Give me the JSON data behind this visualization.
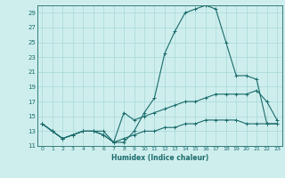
{
  "xlabel": "Humidex (Indice chaleur)",
  "xlim": [
    -0.5,
    23.5
  ],
  "ylim": [
    11,
    30
  ],
  "yticks": [
    11,
    13,
    15,
    17,
    19,
    21,
    23,
    25,
    27,
    29
  ],
  "xticks": [
    0,
    1,
    2,
    3,
    4,
    5,
    6,
    7,
    8,
    9,
    10,
    11,
    12,
    13,
    14,
    15,
    16,
    17,
    18,
    19,
    20,
    21,
    22,
    23
  ],
  "bg_color": "#ceeeed",
  "line_color": "#1a6b6b",
  "grid_color": "#a8d8d8",
  "lines": [
    {
      "x": [
        0,
        1,
        2,
        3,
        4,
        5,
        6,
        7,
        8,
        9,
        10,
        11,
        12,
        13,
        14,
        15,
        16,
        17,
        18,
        19,
        20,
        21,
        22,
        23
      ],
      "y": [
        14,
        13,
        12,
        12.5,
        13,
        13,
        13,
        11.5,
        11.5,
        13,
        15.5,
        17.5,
        23.5,
        26.5,
        29,
        29.5,
        30,
        29.5,
        25,
        20.5,
        20.5,
        20,
        14,
        14
      ]
    },
    {
      "x": [
        0,
        1,
        2,
        3,
        4,
        5,
        6,
        7,
        8,
        9,
        10,
        11,
        12,
        13,
        14,
        15,
        16,
        17,
        18,
        19,
        20,
        21,
        22,
        23
      ],
      "y": [
        14,
        13,
        12,
        12.5,
        13,
        13,
        12.5,
        11.5,
        15.5,
        14.5,
        15,
        15.5,
        16,
        16.5,
        17,
        17,
        17.5,
        18,
        18,
        18,
        18,
        18.5,
        17,
        14.5
      ]
    },
    {
      "x": [
        0,
        1,
        2,
        3,
        4,
        5,
        6,
        7,
        8,
        9,
        10,
        11,
        12,
        13,
        14,
        15,
        16,
        17,
        18,
        19,
        20,
        21,
        22,
        23
      ],
      "y": [
        14,
        13,
        12,
        12.5,
        13,
        13,
        12.5,
        11.5,
        12,
        12.5,
        13,
        13,
        13.5,
        13.5,
        14,
        14,
        14.5,
        14.5,
        14.5,
        14.5,
        14,
        14,
        14,
        14
      ]
    }
  ]
}
